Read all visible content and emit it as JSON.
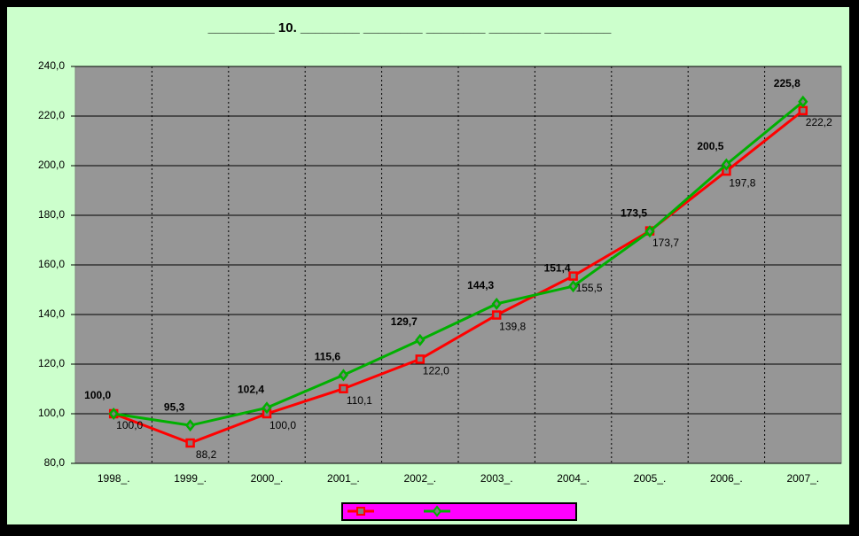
{
  "chart_data": {
    "type": "line",
    "title": "_________ 10. ________ ________ ________ _______ _________",
    "categories": [
      "1998_.",
      "1999_.",
      "2000_.",
      "2001_.",
      "2002_.",
      "2003_.",
      "2004_.",
      "2005_.",
      "2006_.",
      "2007_."
    ],
    "series": [
      {
        "color": "#ff0000",
        "marker": "square",
        "values": [
          100.0,
          88.2,
          100.0,
          110.1,
          122.0,
          139.8,
          155.5,
          173.7,
          197.8,
          222.2
        ],
        "value_labels": [
          "100,0",
          "88,2",
          "100,0",
          "110,1",
          "122,0",
          "139,8",
          "155,5",
          "173,7",
          "197,8",
          "222,2"
        ]
      },
      {
        "color": "#00b000",
        "marker": "diamond",
        "values": [
          100.0,
          95.3,
          102.4,
          115.6,
          129.7,
          144.3,
          151.4,
          173.5,
          200.5,
          225.8
        ],
        "value_labels": [
          "100,0",
          "95,3",
          "102,4",
          "115,6",
          "129,7",
          "144,3",
          "151,4",
          "173,5",
          "200,5",
          "225,8"
        ]
      }
    ],
    "ylim": [
      80,
      240
    ],
    "yticks": [
      {
        "value": 80,
        "label": "80,0"
      },
      {
        "value": 100,
        "label": "100,0"
      },
      {
        "value": 120,
        "label": "120,0"
      },
      {
        "value": 140,
        "label": "140,0"
      },
      {
        "value": 160,
        "label": "160,0"
      },
      {
        "value": 180,
        "label": "180,0"
      },
      {
        "value": 200,
        "label": "200,0"
      },
      {
        "value": 220,
        "label": "220,0"
      },
      {
        "value": 240,
        "label": "240,0"
      }
    ],
    "grid": true,
    "legend": "bottom"
  }
}
